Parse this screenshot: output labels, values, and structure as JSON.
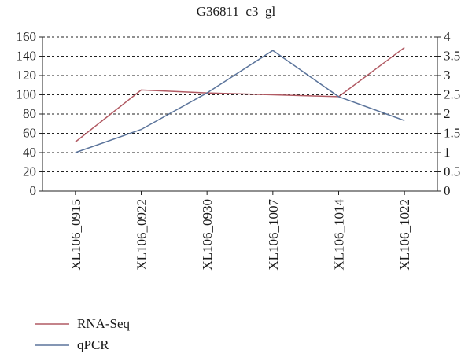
{
  "chart_data": {
    "type": "line",
    "title": "G36811_c3_gl",
    "categories": [
      "XL106_0915",
      "XL106_0922",
      "XL106_0930",
      "XL106_1007",
      "XL106_1014",
      "XL106_1022"
    ],
    "series": [
      {
        "name": "RNA-Seq",
        "axis": "left",
        "color": "#b15a63",
        "values": [
          51,
          105,
          102,
          100,
          98,
          149
        ]
      },
      {
        "name": "qPCR",
        "axis": "right",
        "color": "#5b749b",
        "values": [
          1.0,
          1.6,
          2.55,
          3.65,
          2.45,
          1.83
        ]
      }
    ],
    "y_left": {
      "min": 0,
      "max": 160,
      "ticks": [
        "0",
        "20",
        "40",
        "60",
        "80",
        "100",
        "120",
        "140",
        "160"
      ]
    },
    "y_right": {
      "min": 0,
      "max": 4,
      "ticks": [
        "0",
        "0.5",
        "1",
        "1.5",
        "2",
        "2.5",
        "3",
        "3.5",
        "4"
      ]
    },
    "grid": "horizontal dashed",
    "legend_position": "bottom-left"
  }
}
